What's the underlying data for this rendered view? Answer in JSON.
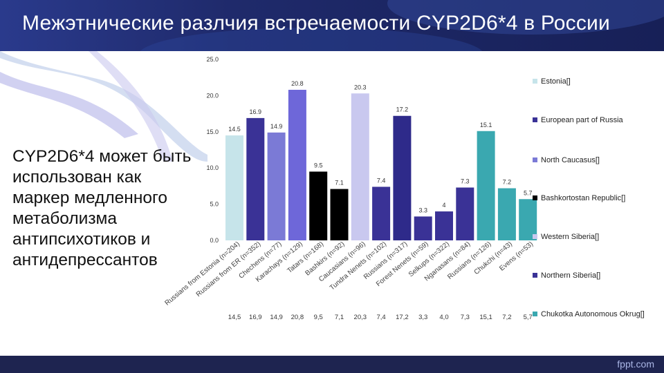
{
  "slide": {
    "title": "Межэтнические разлчия встречаемости CYP2D6*4 в России",
    "body_text": "CYP2D6*4 может быть использован как маркер медленного метаболизма антипсихотиков и антидепрессантов",
    "footer": "fppt.com"
  },
  "colors": {
    "header": "#1f2a6b",
    "footer": "#1e2450"
  },
  "chart_data": {
    "type": "bar",
    "title": "",
    "xlabel": "",
    "ylabel": "",
    "ylim": [
      0,
      25
    ],
    "yticks": [
      0,
      5,
      10,
      15,
      20,
      25
    ],
    "ytick_labels": [
      "0.0",
      "5.0",
      "10.0",
      "15.0",
      "20.0",
      "25.0"
    ],
    "categories": [
      "Russians from Estonia (n=204)",
      "Russians from ER (n=352)",
      "Chechens (n=77)",
      "Karachays (n=129)",
      "Tatars (n=168)",
      "Bashkirs (n=92)",
      "Caucasians (n=96)",
      "Tundra Nenets (n=102)",
      "Russians (n=317)",
      "Forest Nenets (n=59)",
      "Selkups (n=322)",
      "Nganasans (n=84)",
      "Russians (n=126)",
      "Chukchi (n=43)",
      "Evens (n=53)"
    ],
    "values": [
      14.5,
      16.9,
      14.9,
      20.8,
      9.5,
      7.1,
      20.3,
      7.4,
      17.2,
      3.3,
      4.0,
      7.3,
      15.1,
      7.2,
      5.7
    ],
    "table_values": [
      "14,5",
      "16,9",
      "14,9",
      "20,8",
      "9,5",
      "7,1",
      "20,3",
      "7,4",
      "17,2",
      "3,3",
      "4,0",
      "7,3",
      "15,1",
      "7,2",
      "5,7"
    ],
    "bar_colors": [
      "#c6e4ea",
      "#3a3296",
      "#7b7ad6",
      "#6e67d9",
      "#000000",
      "#000000",
      "#c9c8ef",
      "#3a3296",
      "#2e2a8a",
      "#3a3296",
      "#3a3296",
      "#3a3296",
      "#3aa8b0",
      "#3aa8b0",
      "#3aa8b0"
    ],
    "legend": [
      {
        "name": "Estonia[]",
        "color": "#c6e4ea"
      },
      {
        "name": "European part of Russia",
        "color": "#3a3296"
      },
      {
        "name": "North Caucasus[]",
        "color": "#7b7ad6"
      },
      {
        "name": "Bashkortostan Republic[]",
        "color": "#000000"
      },
      {
        "name": "Western Siberia[]",
        "color": "#c9c8ef"
      },
      {
        "name": "Northern Siberia[]",
        "color": "#3a3296"
      },
      {
        "name": "Chukotka Autonomous Okrug[]",
        "color": "#3aa8b0"
      }
    ],
    "legend_position": "right",
    "grid": false
  }
}
